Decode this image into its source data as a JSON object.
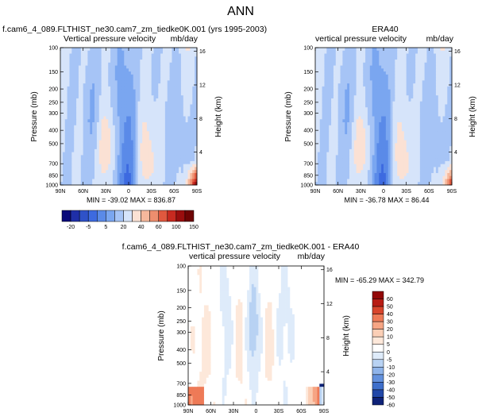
{
  "figure": {
    "title": "ANN"
  },
  "chart_data": [
    {
      "type": "heatmap",
      "title": "f.cam6_4_089.FLTHIST_ne30.cam7_zm_tiedke0K.001 (yrs 1995-2003)",
      "subtitle_left": "Vertical pressure velocity",
      "subtitle_right": "mb/day",
      "xlabel": "",
      "ylabel": "Pressure (mb)",
      "ylabel_right": "Height (km)",
      "x_ticks": [
        "90N",
        "60N",
        "30N",
        "0",
        "30S",
        "60S",
        "90S"
      ],
      "y_ticks": [
        "100",
        "150",
        "200",
        "250",
        "300",
        "400",
        "500",
        "700",
        "850",
        "1000"
      ],
      "y_ticks_right": [
        "16",
        "12",
        "8",
        "4"
      ],
      "stats": "MIN = -39.02  MAX = 836.87",
      "colorbar_labels": [
        "-20",
        "-5",
        "5",
        "20",
        "40",
        "60",
        "100",
        "150"
      ]
    },
    {
      "type": "heatmap",
      "title": "ERA40",
      "subtitle_left": "vertical pressure velocity",
      "subtitle_right": "mb/day",
      "xlabel": "",
      "ylabel": "Pressure (mb)",
      "ylabel_right": "Height (km)",
      "x_ticks": [
        "90N",
        "60N",
        "30N",
        "0",
        "30S",
        "60S",
        "90S"
      ],
      "y_ticks": [
        "100",
        "150",
        "200",
        "250",
        "300",
        "400",
        "500",
        "700",
        "850",
        "1000"
      ],
      "y_ticks_right": [
        "16",
        "12",
        "8",
        "4"
      ],
      "stats": "MIN = -36.78  MAX = 86.44",
      "colorbar_labels": [
        "-20",
        "-5",
        "5",
        "20",
        "40",
        "60",
        "100",
        "150"
      ]
    },
    {
      "type": "heatmap",
      "title": "f.cam6_4_089.FLTHIST_ne30.cam7_zm_tiedke0K.001 - ERA40",
      "subtitle_left": "vertical pressure velocity",
      "subtitle_right": "mb/day",
      "xlabel": "",
      "ylabel": "Pressure (mb)",
      "ylabel_right": "Height (km)",
      "x_ticks": [
        "90N",
        "60N",
        "30N",
        "0",
        "30S",
        "60S",
        "90S"
      ],
      "y_ticks": [
        "100",
        "150",
        "200",
        "250",
        "300",
        "400",
        "500",
        "700",
        "850",
        "1000"
      ],
      "y_ticks_right": [
        "16",
        "12",
        "8",
        "4"
      ],
      "stats": "MIN = -65.29  MAX = 342.79",
      "colorbar_labels": [
        "60",
        "50",
        "40",
        "30",
        "20",
        "10",
        "5",
        "0",
        "-5",
        "-10",
        "-20",
        "-30",
        "-40",
        "-50",
        "-60"
      ]
    }
  ],
  "palettes": {
    "abs": [
      "#0a0a7a",
      "#1f2fa8",
      "#2f52c8",
      "#3d6ae0",
      "#5a8ae8",
      "#7aa6f0",
      "#a6c4f6",
      "#d6e4fa",
      "#fbe1d4",
      "#f6b89c",
      "#ee8e6e",
      "#e0583e",
      "#c82a20",
      "#9a0e0e",
      "#6e0404"
    ],
    "diff": [
      "#920707",
      "#b81c14",
      "#d8452c",
      "#ee7a57",
      "#f6a584",
      "#fbcfb6",
      "#fde8da",
      "#ffffff",
      "#deebfa",
      "#b8d2f3",
      "#8fb4ea",
      "#6391dd",
      "#3e6fcb",
      "#2147a8",
      "#0e2278"
    ]
  }
}
